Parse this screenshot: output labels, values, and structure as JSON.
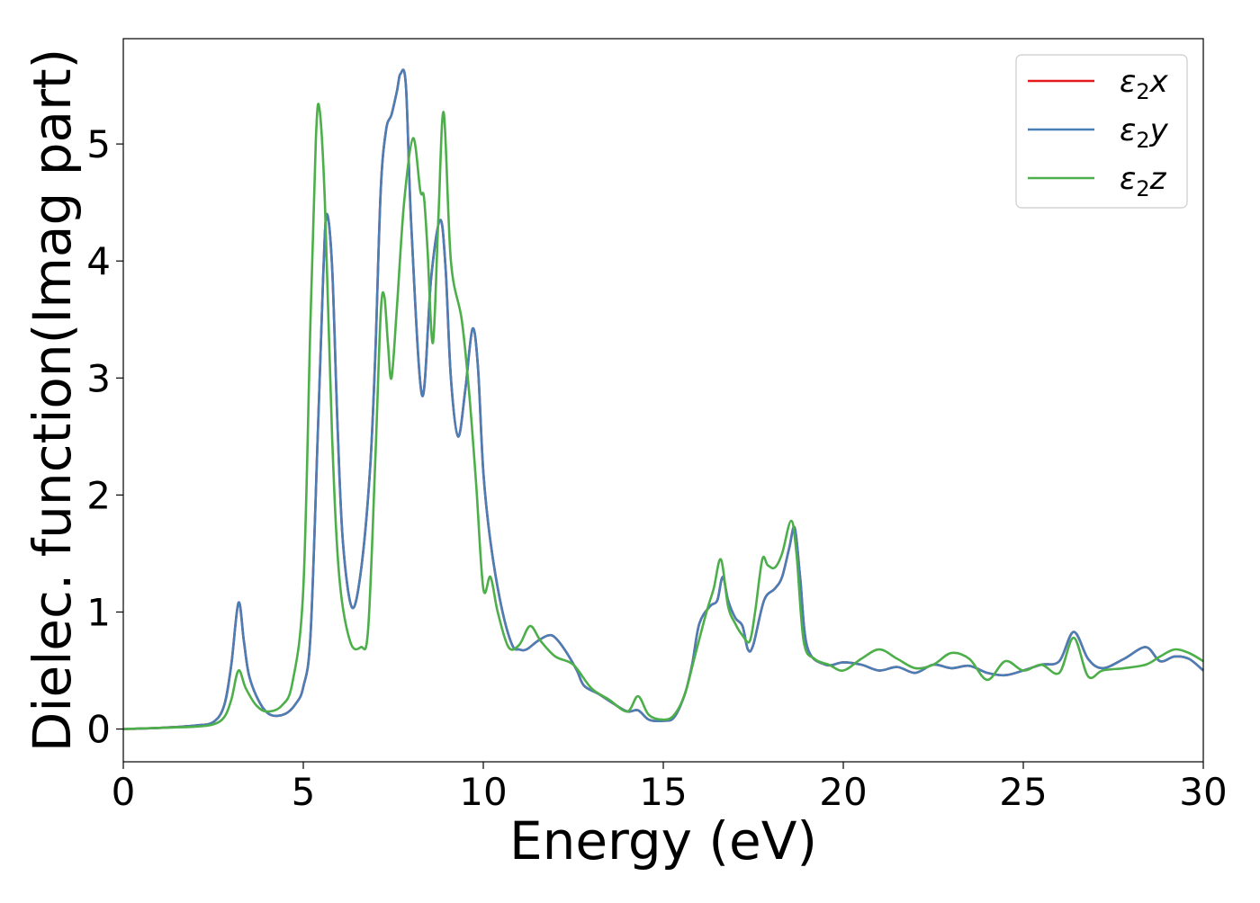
{
  "chart_data": {
    "type": "line",
    "xlabel": "Energy (eV)",
    "ylabel": "Dielec. function(Imag part)",
    "xlim": [
      0,
      30
    ],
    "ylim": [
      -0.28,
      5.9
    ],
    "xticks": [
      0,
      5,
      10,
      15,
      20,
      25,
      30
    ],
    "yticks": [
      0,
      1,
      2,
      3,
      4,
      5
    ],
    "grid": false,
    "legend_position": "top-right",
    "series": [
      {
        "name": "ε2x",
        "legend_base": "ε",
        "legend_sub": "2",
        "legend_var": "x",
        "color": "#e41a1c",
        "x": [
          0,
          1,
          2,
          2.5,
          2.8,
          3.0,
          3.2,
          3.35,
          3.5,
          3.8,
          4.1,
          4.5,
          4.8,
          5.0,
          5.2,
          5.4,
          5.55,
          5.65,
          5.8,
          5.95,
          6.1,
          6.35,
          6.6,
          6.85,
          7.0,
          7.15,
          7.3,
          7.45,
          7.6,
          7.7,
          7.85,
          8.0,
          8.3,
          8.55,
          8.8,
          8.95,
          9.1,
          9.3,
          9.5,
          9.7,
          9.85,
          10.0,
          10.2,
          10.5,
          10.8,
          11.0,
          11.2,
          11.5,
          11.8,
          12.0,
          12.3,
          12.6,
          12.8,
          13.2,
          13.6,
          14.0,
          14.3,
          14.6,
          15.0,
          15.3,
          15.6,
          15.8,
          16.0,
          16.3,
          16.5,
          16.65,
          16.8,
          17.0,
          17.2,
          17.35,
          17.5,
          17.8,
          18.1,
          18.3,
          18.5,
          18.65,
          18.8,
          19.0,
          19.5,
          20.0,
          20.5,
          21.0,
          21.5,
          22.0,
          22.5,
          23.0,
          23.5,
          24.0,
          24.5,
          25.0,
          25.5,
          26.0,
          26.4,
          26.8,
          27.2,
          27.8,
          28.4,
          28.8,
          29.2,
          29.6,
          30.0
        ],
        "y": [
          0,
          0.01,
          0.03,
          0.06,
          0.2,
          0.55,
          1.08,
          0.75,
          0.45,
          0.22,
          0.12,
          0.13,
          0.22,
          0.36,
          0.8,
          2.5,
          3.85,
          4.4,
          3.95,
          2.6,
          1.6,
          1.04,
          1.35,
          2.2,
          3.2,
          4.6,
          5.12,
          5.25,
          5.45,
          5.6,
          5.5,
          4.3,
          2.85,
          3.85,
          4.35,
          3.95,
          3.0,
          2.5,
          2.9,
          3.42,
          3.1,
          2.2,
          1.6,
          1.05,
          0.72,
          0.68,
          0.68,
          0.75,
          0.8,
          0.78,
          0.66,
          0.5,
          0.37,
          0.3,
          0.22,
          0.15,
          0.16,
          0.08,
          0.07,
          0.1,
          0.3,
          0.55,
          0.9,
          1.05,
          1.1,
          1.3,
          1.1,
          0.95,
          0.88,
          0.68,
          0.72,
          1.1,
          1.2,
          1.3,
          1.55,
          1.72,
          1.3,
          0.7,
          0.55,
          0.57,
          0.55,
          0.5,
          0.53,
          0.48,
          0.55,
          0.52,
          0.54,
          0.48,
          0.46,
          0.5,
          0.55,
          0.58,
          0.83,
          0.6,
          0.52,
          0.6,
          0.7,
          0.58,
          0.62,
          0.6,
          0.5
        ]
      },
      {
        "name": "ε2y",
        "legend_base": "ε",
        "legend_sub": "2",
        "legend_var": "y",
        "color": "#4a7eb6",
        "x": [
          0,
          1,
          2,
          2.5,
          2.8,
          3.0,
          3.2,
          3.35,
          3.5,
          3.8,
          4.1,
          4.5,
          4.8,
          5.0,
          5.2,
          5.4,
          5.55,
          5.65,
          5.8,
          5.95,
          6.1,
          6.35,
          6.6,
          6.85,
          7.0,
          7.15,
          7.3,
          7.45,
          7.6,
          7.7,
          7.85,
          8.0,
          8.3,
          8.55,
          8.8,
          8.95,
          9.1,
          9.3,
          9.5,
          9.7,
          9.85,
          10.0,
          10.2,
          10.5,
          10.8,
          11.0,
          11.2,
          11.5,
          11.8,
          12.0,
          12.3,
          12.6,
          12.8,
          13.2,
          13.6,
          14.0,
          14.3,
          14.6,
          15.0,
          15.3,
          15.6,
          15.8,
          16.0,
          16.3,
          16.5,
          16.65,
          16.8,
          17.0,
          17.2,
          17.35,
          17.5,
          17.8,
          18.1,
          18.3,
          18.5,
          18.65,
          18.8,
          19.0,
          19.5,
          20.0,
          20.5,
          21.0,
          21.5,
          22.0,
          22.5,
          23.0,
          23.5,
          24.0,
          24.5,
          25.0,
          25.5,
          26.0,
          26.4,
          26.8,
          27.2,
          27.8,
          28.4,
          28.8,
          29.2,
          29.6,
          30.0
        ],
        "y": [
          0,
          0.01,
          0.03,
          0.06,
          0.2,
          0.55,
          1.08,
          0.75,
          0.45,
          0.22,
          0.12,
          0.13,
          0.22,
          0.36,
          0.8,
          2.5,
          3.85,
          4.4,
          3.95,
          2.6,
          1.6,
          1.04,
          1.35,
          2.2,
          3.2,
          4.6,
          5.12,
          5.25,
          5.45,
          5.6,
          5.5,
          4.3,
          2.85,
          3.85,
          4.35,
          3.95,
          3.0,
          2.5,
          2.9,
          3.42,
          3.1,
          2.2,
          1.6,
          1.05,
          0.72,
          0.68,
          0.68,
          0.75,
          0.8,
          0.78,
          0.66,
          0.5,
          0.37,
          0.3,
          0.22,
          0.15,
          0.16,
          0.08,
          0.07,
          0.1,
          0.3,
          0.55,
          0.9,
          1.05,
          1.1,
          1.3,
          1.1,
          0.95,
          0.88,
          0.68,
          0.72,
          1.1,
          1.2,
          1.3,
          1.55,
          1.72,
          1.3,
          0.7,
          0.55,
          0.57,
          0.55,
          0.5,
          0.53,
          0.48,
          0.55,
          0.52,
          0.54,
          0.48,
          0.46,
          0.5,
          0.55,
          0.58,
          0.83,
          0.6,
          0.52,
          0.6,
          0.7,
          0.58,
          0.62,
          0.6,
          0.5
        ]
      },
      {
        "name": "ε2z",
        "legend_base": "ε",
        "legend_sub": "2",
        "legend_var": "z",
        "color": "#4daf4a",
        "x": [
          0,
          1,
          2,
          2.5,
          2.8,
          3.0,
          3.2,
          3.4,
          3.7,
          4.0,
          4.4,
          4.7,
          5.0,
          5.2,
          5.35,
          5.45,
          5.6,
          5.8,
          6.0,
          6.3,
          6.6,
          6.8,
          7.0,
          7.15,
          7.25,
          7.35,
          7.45,
          7.6,
          7.8,
          8.05,
          8.25,
          8.35,
          8.45,
          8.6,
          8.75,
          8.9,
          9.1,
          9.4,
          9.6,
          9.8,
          10.0,
          10.2,
          10.4,
          10.7,
          11.0,
          11.3,
          11.6,
          12.0,
          12.5,
          13.0,
          13.5,
          14.0,
          14.3,
          14.6,
          15.0,
          15.3,
          15.6,
          15.9,
          16.2,
          16.4,
          16.6,
          16.8,
          17.0,
          17.2,
          17.4,
          17.55,
          17.75,
          17.9,
          18.1,
          18.3,
          18.55,
          18.7,
          18.9,
          19.2,
          19.6,
          20.0,
          20.5,
          21.0,
          21.5,
          22.0,
          22.5,
          23.0,
          23.5,
          24.0,
          24.5,
          25.0,
          25.5,
          26.0,
          26.4,
          26.8,
          27.2,
          27.8,
          28.4,
          28.8,
          29.2,
          29.6,
          30.0
        ],
        "y": [
          0,
          0.01,
          0.02,
          0.04,
          0.1,
          0.25,
          0.5,
          0.35,
          0.2,
          0.15,
          0.2,
          0.4,
          1.2,
          3.5,
          5.05,
          5.3,
          4.5,
          2.5,
          1.3,
          0.75,
          0.7,
          0.85,
          2.3,
          3.55,
          3.7,
          3.3,
          3.0,
          3.6,
          4.5,
          5.05,
          4.6,
          4.55,
          4.1,
          3.3,
          4.35,
          5.27,
          4.0,
          3.5,
          2.9,
          2.1,
          1.2,
          1.3,
          1.0,
          0.7,
          0.72,
          0.88,
          0.75,
          0.62,
          0.55,
          0.35,
          0.25,
          0.15,
          0.28,
          0.12,
          0.08,
          0.12,
          0.3,
          0.65,
          1.0,
          1.2,
          1.45,
          1.05,
          0.9,
          0.8,
          0.75,
          1.0,
          1.45,
          1.4,
          1.38,
          1.5,
          1.78,
          1.5,
          0.75,
          0.6,
          0.55,
          0.5,
          0.6,
          0.68,
          0.6,
          0.52,
          0.55,
          0.65,
          0.6,
          0.42,
          0.58,
          0.5,
          0.55,
          0.48,
          0.78,
          0.45,
          0.5,
          0.52,
          0.55,
          0.62,
          0.68,
          0.65,
          0.58
        ]
      }
    ]
  }
}
